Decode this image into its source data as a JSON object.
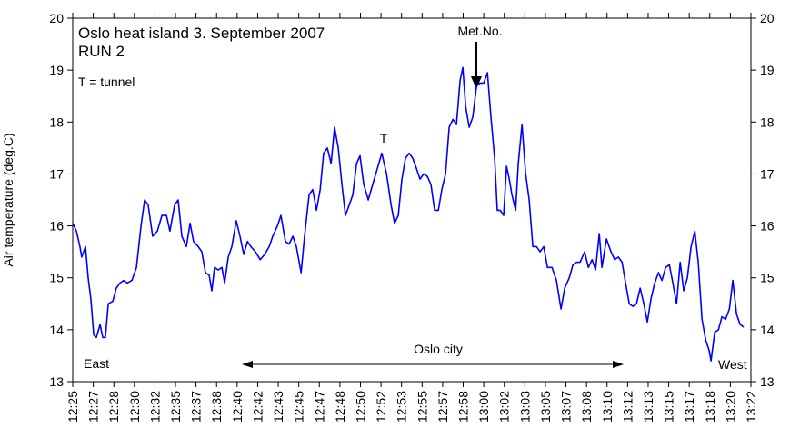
{
  "chart_data": {
    "type": "line",
    "title": "Oslo heat island 3. September 2007",
    "subtitle": "RUN 2",
    "y_label": "Air temperature (deg.C)",
    "annotations": {
      "legend_note": "T = tunnel",
      "tunnel": "T",
      "station": "Met.No.",
      "city": "Oslo city",
      "east": "East",
      "west": "West"
    },
    "xlim": [
      0,
      33
    ],
    "xticks": [
      {
        "value": 0,
        "label": "12:25"
      },
      {
        "value": 1,
        "label": "12:27"
      },
      {
        "value": 2,
        "label": "12:28"
      },
      {
        "value": 3,
        "label": "12:30"
      },
      {
        "value": 4,
        "label": "12:32"
      },
      {
        "value": 5,
        "label": "12:35"
      },
      {
        "value": 6,
        "label": "12:37"
      },
      {
        "value": 7,
        "label": "12:38"
      },
      {
        "value": 8,
        "label": "12:40"
      },
      {
        "value": 9,
        "label": "12:42"
      },
      {
        "value": 10,
        "label": "12:43"
      },
      {
        "value": 11,
        "label": "12:45"
      },
      {
        "value": 12,
        "label": "12:47"
      },
      {
        "value": 13,
        "label": "12:48"
      },
      {
        "value": 14,
        "label": "12:50"
      },
      {
        "value": 15,
        "label": "12:52"
      },
      {
        "value": 16,
        "label": "12:53"
      },
      {
        "value": 17,
        "label": "12:55"
      },
      {
        "value": 18,
        "label": "12:57"
      },
      {
        "value": 19,
        "label": "12:58"
      },
      {
        "value": 20,
        "label": "13:00"
      },
      {
        "value": 21,
        "label": "13:02"
      },
      {
        "value": 22,
        "label": "13:03"
      },
      {
        "value": 23,
        "label": "13:05"
      },
      {
        "value": 24,
        "label": "13:07"
      },
      {
        "value": 25,
        "label": "13:08"
      },
      {
        "value": 26,
        "label": "13:10"
      },
      {
        "value": 27,
        "label": "13:12"
      },
      {
        "value": 28,
        "label": "13:13"
      },
      {
        "value": 29,
        "label": "13:15"
      },
      {
        "value": 30,
        "label": "13:17"
      },
      {
        "value": 31,
        "label": "13:18"
      },
      {
        "value": 32,
        "label": "13:20"
      },
      {
        "value": 33,
        "label": "13:22"
      }
    ],
    "ylim": [
      13,
      20
    ],
    "yticks": [
      13,
      14,
      15,
      16,
      17,
      18,
      19,
      20
    ],
    "series": [
      {
        "color": "#0000ff",
        "x": [
          0,
          0.18,
          0.35,
          0.44,
          0.62,
          0.75,
          0.88,
          1.02,
          1.15,
          1.33,
          1.46,
          1.59,
          1.73,
          1.95,
          2.12,
          2.3,
          2.48,
          2.65,
          2.88,
          3.1,
          3.32,
          3.5,
          3.67,
          3.89,
          4.12,
          4.34,
          4.56,
          4.73,
          4.96,
          5.13,
          5.31,
          5.53,
          5.71,
          5.88,
          6.11,
          6.28,
          6.46,
          6.64,
          6.77,
          6.9,
          7.08,
          7.26,
          7.39,
          7.57,
          7.74,
          7.96,
          8.14,
          8.32,
          8.5,
          8.67,
          8.89,
          9.12,
          9.34,
          9.56,
          9.73,
          9.96,
          10.13,
          10.35,
          10.53,
          10.71,
          10.88,
          11.11,
          11.28,
          11.5,
          11.68,
          11.86,
          12.04,
          12.21,
          12.39,
          12.57,
          12.74,
          12.92,
          13.1,
          13.27,
          13.45,
          13.63,
          13.81,
          13.98,
          14.16,
          14.38,
          14.6,
          14.82,
          15.04,
          15.27,
          15.49,
          15.66,
          15.84,
          16.02,
          16.19,
          16.37,
          16.55,
          16.73,
          16.9,
          17.08,
          17.26,
          17.43,
          17.61,
          17.79,
          17.96,
          18.14,
          18.32,
          18.5,
          18.67,
          18.85,
          18.98,
          19.12,
          19.29,
          19.47,
          19.65,
          19.82,
          20.0,
          20.18,
          20.35,
          20.53,
          20.66,
          20.8,
          20.97,
          21.11,
          21.24,
          21.37,
          21.55,
          21.68,
          21.86,
          22.04,
          22.21,
          22.39,
          22.57,
          22.74,
          22.92,
          23.1,
          23.32,
          23.54,
          23.76,
          23.94,
          24.16,
          24.34,
          24.51,
          24.69,
          24.91,
          25.09,
          25.27,
          25.44,
          25.62,
          25.75,
          25.97,
          26.19,
          26.37,
          26.55,
          26.73,
          26.9,
          27.08,
          27.26,
          27.43,
          27.61,
          27.79,
          27.96,
          28.14,
          28.32,
          28.5,
          28.67,
          28.85,
          29.03,
          29.2,
          29.38,
          29.56,
          29.73,
          29.91,
          30.09,
          30.27,
          30.44,
          30.62,
          30.8,
          30.97,
          31.06,
          31.24,
          31.42,
          31.59,
          31.77,
          31.95,
          32.12,
          32.3,
          32.48,
          32.65
        ],
        "values": [
          16.05,
          15.9,
          15.6,
          15.4,
          15.6,
          15.0,
          14.6,
          13.9,
          13.85,
          14.1,
          13.85,
          13.85,
          14.5,
          14.55,
          14.8,
          14.9,
          14.95,
          14.9,
          14.95,
          15.2,
          16.0,
          16.5,
          16.4,
          15.8,
          15.9,
          16.2,
          16.2,
          15.9,
          16.4,
          16.5,
          15.8,
          15.6,
          16.05,
          15.7,
          15.6,
          15.5,
          15.1,
          15.05,
          14.75,
          15.2,
          15.15,
          15.2,
          14.9,
          15.4,
          15.6,
          16.1,
          15.8,
          15.45,
          15.7,
          15.6,
          15.5,
          15.35,
          15.45,
          15.6,
          15.8,
          16.0,
          16.2,
          15.7,
          15.65,
          15.8,
          15.6,
          15.1,
          15.8,
          16.6,
          16.7,
          16.3,
          16.7,
          17.4,
          17.5,
          17.2,
          17.9,
          17.5,
          16.8,
          16.2,
          16.4,
          16.6,
          17.2,
          17.35,
          16.8,
          16.5,
          16.8,
          17.1,
          17.4,
          17.0,
          16.4,
          16.05,
          16.2,
          16.9,
          17.3,
          17.4,
          17.3,
          17.1,
          16.9,
          17.0,
          16.95,
          16.8,
          16.3,
          16.3,
          16.7,
          17.0,
          17.9,
          18.05,
          17.95,
          18.8,
          19.05,
          18.3,
          17.9,
          18.1,
          18.7,
          18.75,
          18.75,
          18.95,
          18.1,
          17.3,
          16.3,
          16.3,
          16.2,
          17.15,
          16.9,
          16.6,
          16.3,
          17.2,
          17.95,
          17.0,
          16.5,
          15.6,
          15.6,
          15.5,
          15.6,
          15.2,
          15.2,
          14.95,
          14.4,
          14.8,
          15.0,
          15.25,
          15.3,
          15.3,
          15.5,
          15.2,
          15.35,
          15.15,
          15.85,
          15.2,
          15.75,
          15.5,
          15.35,
          15.4,
          15.3,
          14.9,
          14.5,
          14.45,
          14.5,
          14.8,
          14.5,
          14.15,
          14.6,
          14.9,
          15.1,
          14.95,
          15.2,
          15.25,
          14.9,
          14.5,
          15.3,
          14.75,
          15.0,
          15.6,
          15.9,
          15.3,
          14.2,
          13.8,
          13.6,
          13.4,
          13.95,
          14.0,
          14.25,
          14.2,
          14.4,
          14.95,
          14.3,
          14.1,
          14.05
        ]
      }
    ]
  }
}
